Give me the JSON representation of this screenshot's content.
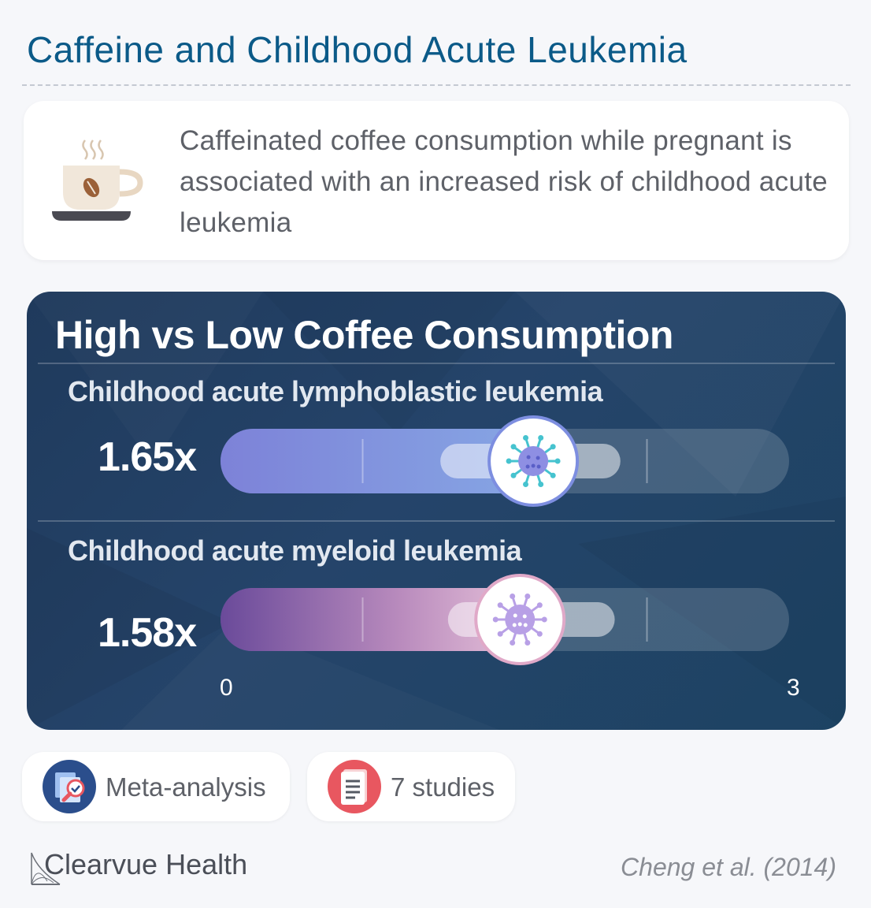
{
  "title": "Caffeine and Childhood Acute Leukemia",
  "summary": {
    "icon": "coffee-cup-icon",
    "text": "Caffeinated coffee consumption while pregnant is associated with an increased risk of childhood acute leukemia"
  },
  "chart_data": {
    "type": "bar",
    "title": "High vs Low Coffee Consumption",
    "xlim": [
      0,
      3
    ],
    "tick_labels": [
      "0",
      "3"
    ],
    "categories": [
      "Childhood acute lymphoblastic leukemia",
      "Childhood acute myeloid leukemia"
    ],
    "values": [
      1.65,
      1.58
    ],
    "value_labels": [
      "1.65x",
      "1.58x"
    ],
    "ci": [
      [
        1.16,
        2.11
      ],
      [
        1.2,
        2.08
      ]
    ],
    "colors": [
      "#8190dd",
      "#c79bc6"
    ],
    "marker_icons": [
      "lymphoblast-cell-icon",
      "myeloid-cell-icon"
    ]
  },
  "badges": [
    {
      "label": "Meta-analysis",
      "icon": "meta-analysis-icon",
      "color": "#2b4e8c"
    },
    {
      "label": "7 studies",
      "icon": "document-icon",
      "color": "#e85760"
    }
  ],
  "footer": {
    "brand": "Clearvue Health",
    "citation": "Cheng et al. (2014)"
  }
}
